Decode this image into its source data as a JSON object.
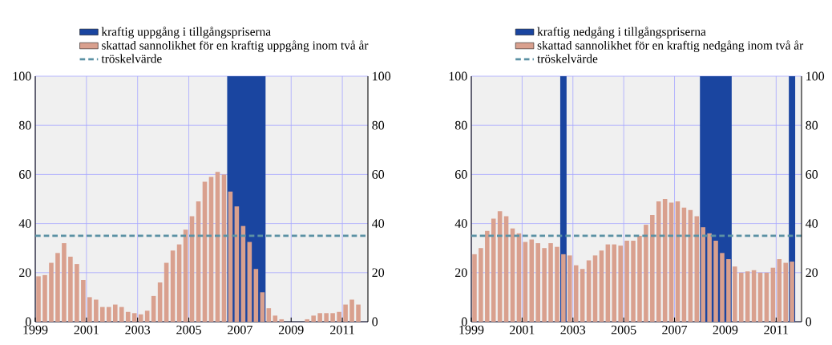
{
  "chart_data": [
    {
      "type": "bar",
      "x": [
        1999.125,
        1999.375,
        1999.625,
        1999.875,
        2000.125,
        2000.375,
        2000.625,
        2000.875,
        2001.125,
        2001.375,
        2001.625,
        2001.875,
        2002.125,
        2002.375,
        2002.625,
        2002.875,
        2003.125,
        2003.375,
        2003.625,
        2003.875,
        2004.125,
        2004.375,
        2004.625,
        2004.875,
        2005.125,
        2005.375,
        2005.625,
        2005.875,
        2006.125,
        2006.375,
        2006.625,
        2006.875,
        2007.125,
        2007.375,
        2007.625,
        2007.875,
        2008.125,
        2008.375,
        2008.625,
        2008.875,
        2009.125,
        2009.375,
        2009.625,
        2009.875,
        2010.125,
        2010.375,
        2010.625,
        2010.875,
        2011.125,
        2011.375,
        2011.625
      ],
      "series": [
        {
          "name": "skattad sannolikhet för en kraftig uppgång inom två år",
          "color": "#d9a08e",
          "values": [
            18.5,
            19,
            24,
            28,
            32,
            26.5,
            23.5,
            17,
            10,
            9,
            6,
            6,
            7,
            6,
            4,
            3.5,
            3,
            4.5,
            10.5,
            16,
            24,
            29,
            31.5,
            37.5,
            43,
            49,
            57,
            59,
            61,
            60,
            53,
            47,
            39,
            32.5,
            21.5,
            12,
            5.5,
            2.5,
            1,
            0,
            0,
            0,
            1,
            2.5,
            3.5,
            3.5,
            3.5,
            4,
            7,
            9,
            7
          ]
        }
      ],
      "bands": [
        {
          "axis": "x",
          "from": 2006.5,
          "to": 2008,
          "label": "kraftig uppgång i tillgångspriserna",
          "color": "#1a45a0"
        }
      ],
      "ref_lines": [
        {
          "axis": "y",
          "value": 35,
          "label": "tröskelvärde",
          "color": "#5b91a4",
          "line_style": "dashed"
        }
      ],
      "xlim": [
        1999,
        2012
      ],
      "xticks": [
        1999,
        2001,
        2003,
        2005,
        2007,
        2009,
        2011
      ],
      "ylim": [
        0,
        100
      ],
      "yticks": [
        0,
        20,
        40,
        60,
        80,
        100
      ],
      "y2lim": [
        0,
        100
      ],
      "y2ticks": [
        0,
        20,
        40,
        60,
        80,
        100
      ],
      "grid": true,
      "legend": "top"
    },
    {
      "type": "bar",
      "x": [
        1999.125,
        1999.375,
        1999.625,
        1999.875,
        2000.125,
        2000.375,
        2000.625,
        2000.875,
        2001.125,
        2001.375,
        2001.625,
        2001.875,
        2002.125,
        2002.375,
        2002.625,
        2002.875,
        2003.125,
        2003.375,
        2003.625,
        2003.875,
        2004.125,
        2004.375,
        2004.625,
        2004.875,
        2005.125,
        2005.375,
        2005.625,
        2005.875,
        2006.125,
        2006.375,
        2006.625,
        2006.875,
        2007.125,
        2007.375,
        2007.625,
        2007.875,
        2008.125,
        2008.375,
        2008.625,
        2008.875,
        2009.125,
        2009.375,
        2009.625,
        2009.875,
        2010.125,
        2010.375,
        2010.625,
        2010.875,
        2011.125,
        2011.375,
        2011.625
      ],
      "series": [
        {
          "name": "skattad sannolikhet för en kraftig nedgång inom två år",
          "color": "#d9a08e",
          "values": [
            27.5,
            30,
            37,
            42,
            45,
            43,
            38,
            36,
            32.5,
            33.5,
            32,
            30,
            32,
            30.5,
            27.5,
            27,
            23,
            21.5,
            25,
            27,
            29,
            31.5,
            31.5,
            31,
            33,
            33,
            35,
            39.5,
            43.5,
            49,
            50,
            48.5,
            49,
            46.5,
            45.5,
            43,
            38.5,
            36,
            33,
            28,
            25.5,
            22.5,
            20,
            20.5,
            21,
            20,
            20,
            22,
            25.5,
            24,
            24.5
          ]
        }
      ],
      "bands": [
        {
          "axis": "x",
          "from": 2002.5,
          "to": 2002.75,
          "label": "kraftig nedgång i tillgångspriserna",
          "color": "#1a45a0"
        },
        {
          "axis": "x",
          "from": 2008,
          "to": 2009.25,
          "color": "#1a45a0"
        },
        {
          "axis": "x",
          "from": 2011.5,
          "to": 2011.75,
          "color": "#1a45a0"
        }
      ],
      "ref_lines": [
        {
          "axis": "y",
          "value": 35,
          "label": "tröskelvärde",
          "color": "#5b91a4",
          "line_style": "dashed"
        }
      ],
      "xlim": [
        1999,
        2012
      ],
      "xticks": [
        1999,
        2001,
        2003,
        2005,
        2007,
        2009,
        2011
      ],
      "ylim": [
        0,
        100
      ],
      "yticks": [
        0,
        20,
        40,
        60,
        80,
        100
      ],
      "y2lim": [
        0,
        100
      ],
      "y2ticks": [
        0,
        20,
        40,
        60,
        80,
        100
      ],
      "grid": true,
      "legend": "top"
    }
  ]
}
